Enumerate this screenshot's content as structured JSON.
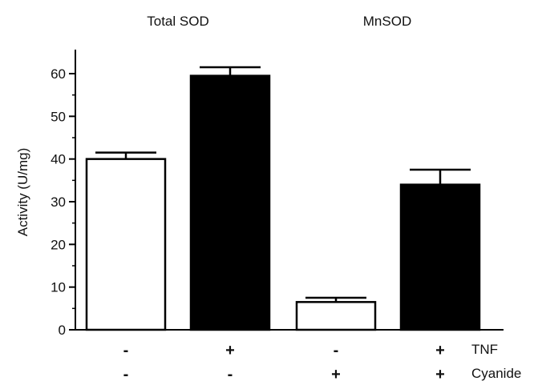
{
  "chart_data": {
    "type": "bar",
    "group_titles": [
      "Total SOD",
      "MnSOD"
    ],
    "ylabel": "Activity (U/mg)",
    "ylim": [
      0,
      65
    ],
    "yticks": [
      0,
      10,
      20,
      30,
      40,
      50,
      60
    ],
    "grid": false,
    "bars": [
      {
        "value": 40,
        "error": 1.5,
        "fill": "#ffffff",
        "group": 0
      },
      {
        "value": 59.5,
        "error": 2,
        "fill": "#000000",
        "group": 0
      },
      {
        "value": 6.5,
        "error": 1,
        "fill": "#ffffff",
        "group": 1
      },
      {
        "value": 34,
        "error": 3.5,
        "fill": "#000000",
        "group": 1
      }
    ],
    "condition_rows": [
      {
        "label": "TNF",
        "signs": [
          "-",
          "+",
          "-",
          "+"
        ]
      },
      {
        "label": "Cyanide",
        "signs": [
          "-",
          "-",
          "+",
          "+"
        ]
      }
    ]
  }
}
